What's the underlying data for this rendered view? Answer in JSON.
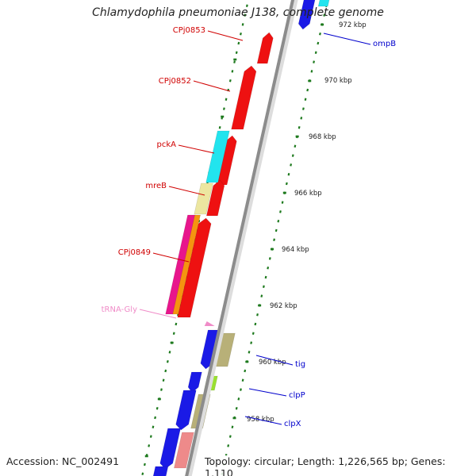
{
  "title": "Chlamydophila pneumoniae J138, complete genome",
  "accession": "Accession: NC_002491",
  "topology": "Topology: circular; Length: 1,226,565 bp; Genes: 1,110",
  "colors": {
    "backbone": "#8c8c8c",
    "tick": "#1e7a1e",
    "red": "#ee1111",
    "blue": "#1a1ae6",
    "cyan": "#22e4ee",
    "khaki": "#b8b078",
    "pale_yellow": "#ece6a0",
    "magenta": "#e8168c",
    "orange": "#f59410",
    "pink": "#ee8a8a",
    "green": "#9ae030",
    "trna": "#f08cc8"
  },
  "scale_labels": [
    "972 kbp",
    "970 kbp",
    "968 kbp",
    "966 kbp",
    "964 kbp",
    "962 kbp",
    "960 kbp",
    "958 kbp"
  ],
  "gene_labels": [
    {
      "text": "CPj0853",
      "color": "#d00000"
    },
    {
      "text": "CPj0852",
      "color": "#d00000"
    },
    {
      "text": "pckA",
      "color": "#d00000"
    },
    {
      "text": "mreB",
      "color": "#d00000"
    },
    {
      "text": "CPj0849",
      "color": "#d00000"
    },
    {
      "text": "tRNA-Gly",
      "color": "#f08cc8"
    },
    {
      "text": "ompB",
      "color": "#0000cc"
    },
    {
      "text": "tig",
      "color": "#0000cc"
    },
    {
      "text": "clpP",
      "color": "#0000cc"
    },
    {
      "text": "clpX",
      "color": "#0000cc"
    }
  ],
  "features": [
    {
      "color": "red",
      "strand": "reverse"
    },
    {
      "color": "red",
      "strand": "reverse"
    },
    {
      "color": "red",
      "strand": "reverse"
    },
    {
      "color": "red",
      "strand": "reverse"
    },
    {
      "color": "red",
      "strand": "reverse"
    },
    {
      "color": "cyan",
      "strand": "reverse"
    },
    {
      "color": "pale_yellow",
      "strand": "reverse"
    },
    {
      "color": "magenta",
      "strand": "reverse"
    },
    {
      "color": "orange",
      "strand": "reverse"
    },
    {
      "color": "trna",
      "strand": "reverse"
    },
    {
      "color": "blue",
      "strand": "forward"
    },
    {
      "color": "khaki",
      "strand": "forward"
    },
    {
      "color": "blue",
      "strand": "forward"
    },
    {
      "color": "green",
      "strand": "forward"
    },
    {
      "color": "blue",
      "strand": "forward"
    },
    {
      "color": "khaki",
      "strand": "forward"
    },
    {
      "color": "blue",
      "strand": "forward"
    },
    {
      "color": "pink",
      "strand": "forward"
    },
    {
      "color": "blue",
      "strand": "forward"
    },
    {
      "color": "cyan",
      "strand": "forward"
    }
  ]
}
